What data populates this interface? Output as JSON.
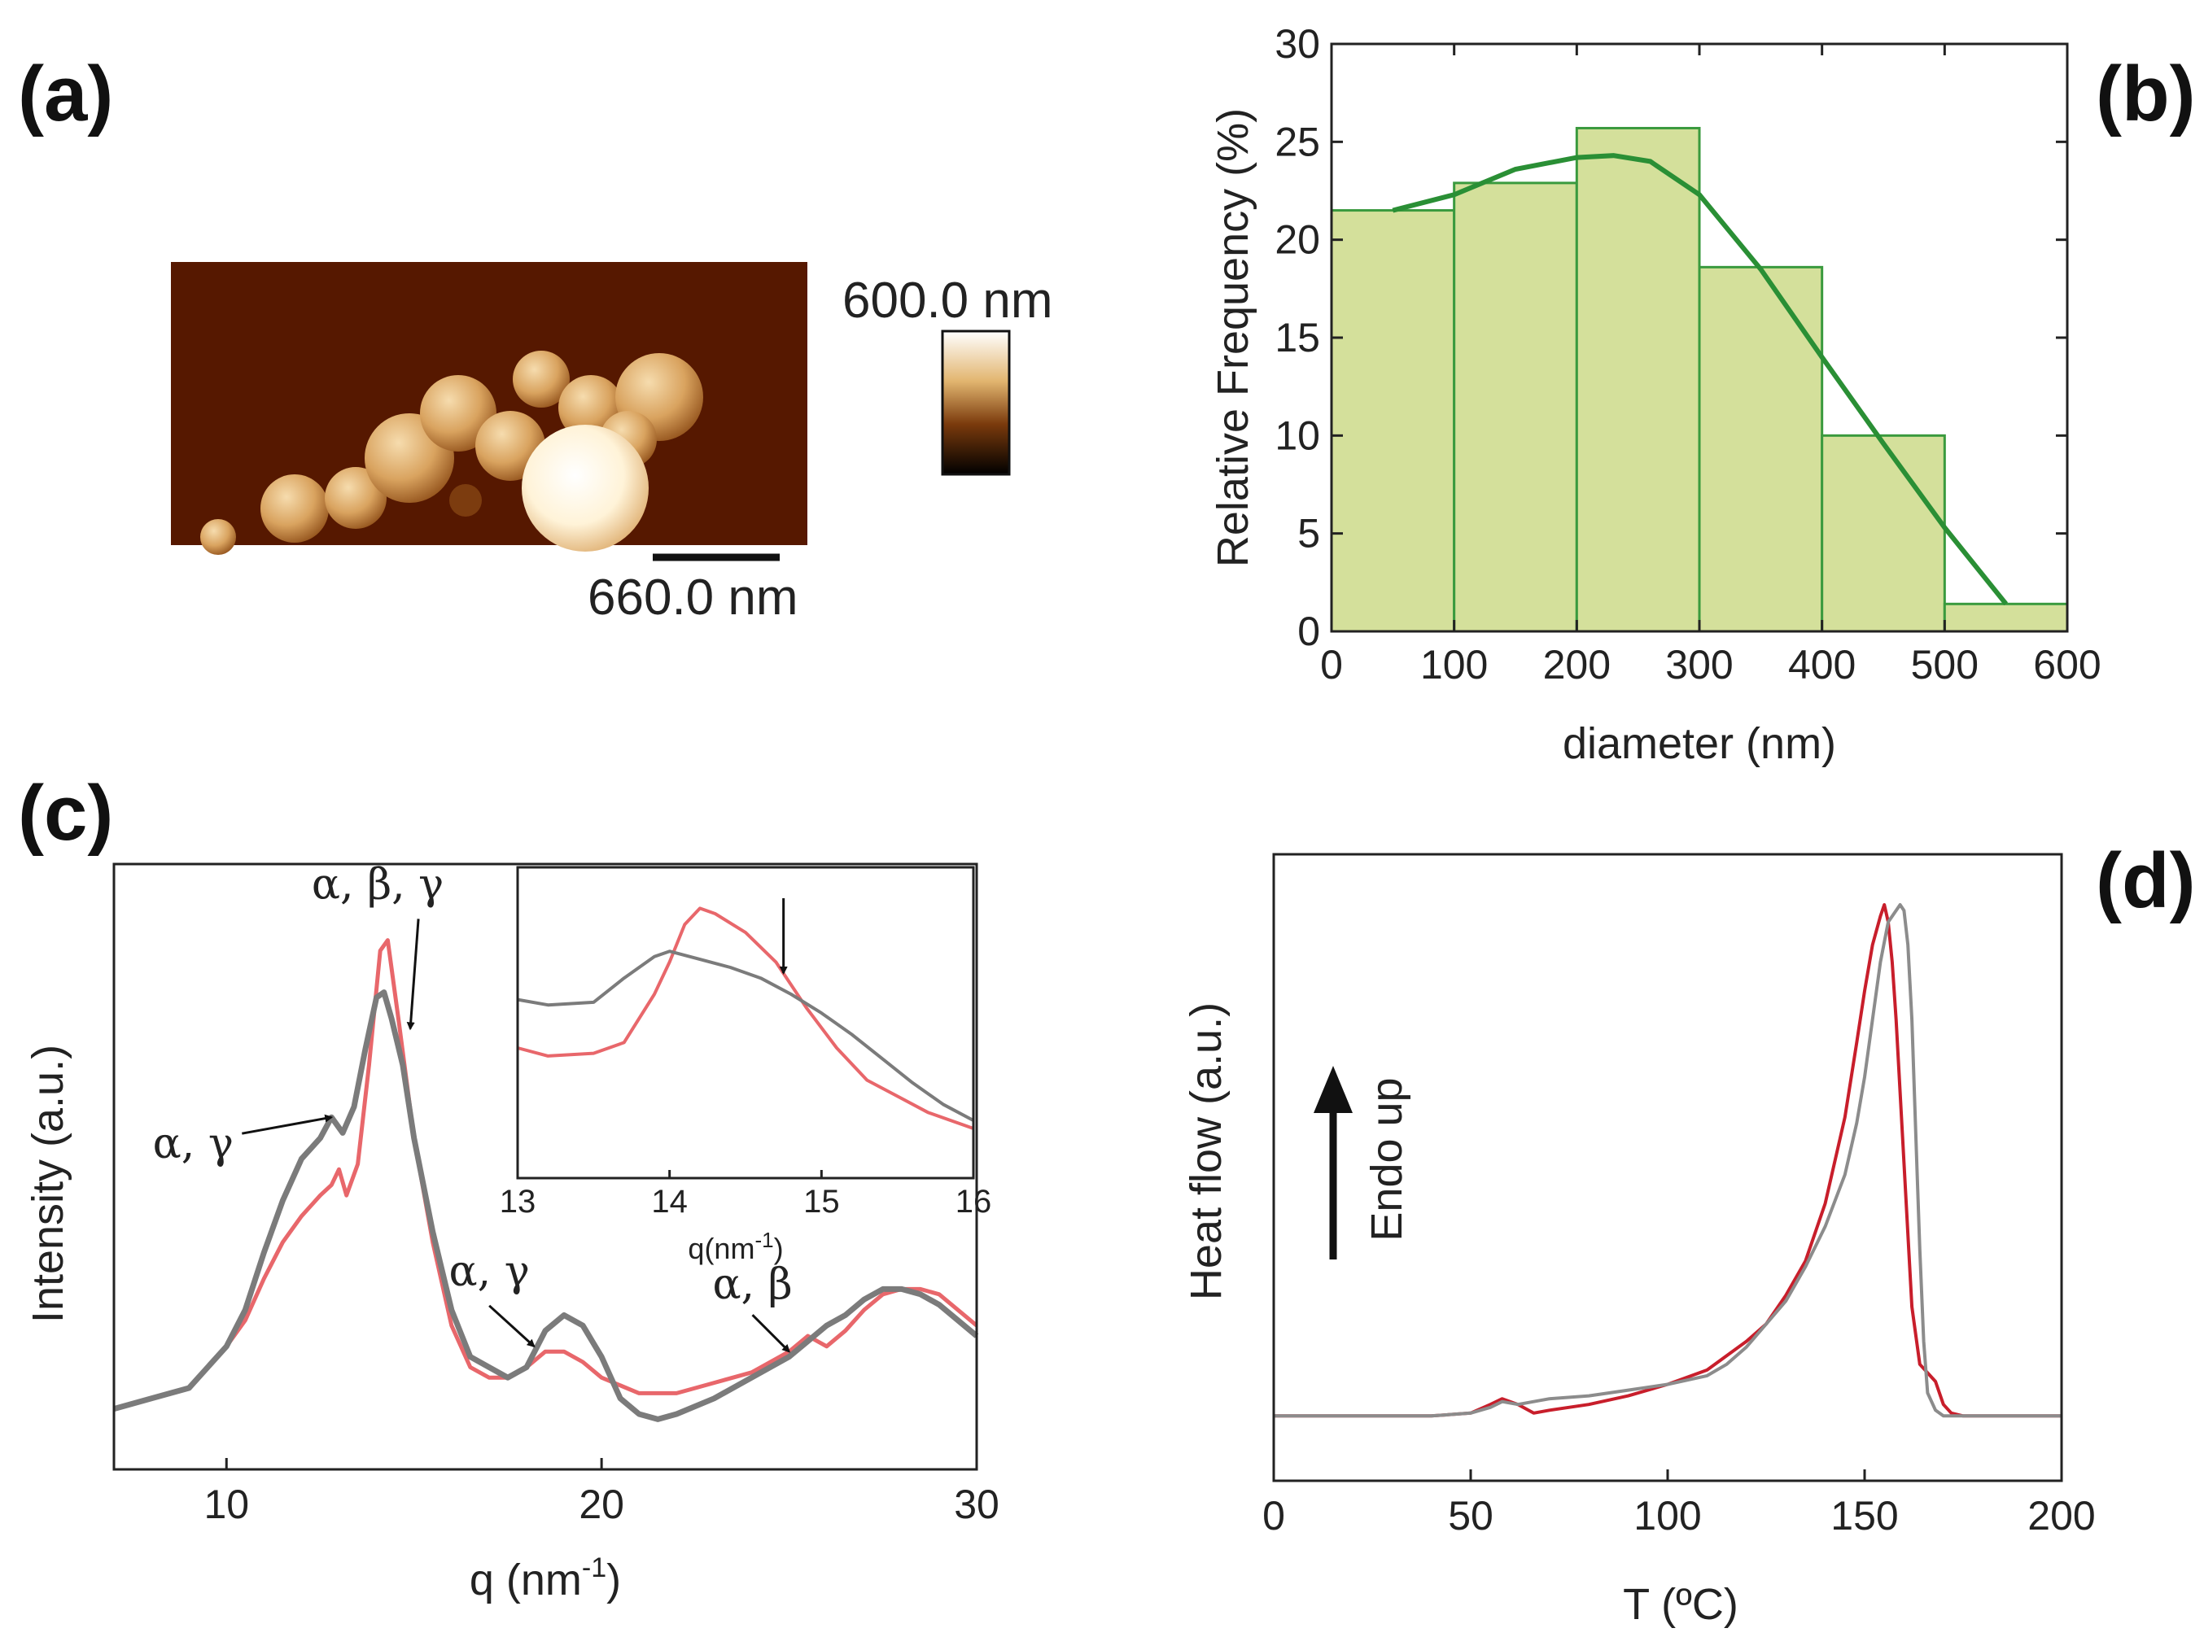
{
  "figure": {
    "panel_labels": {
      "a": "(a)",
      "b": "(b)",
      "c": "(c)",
      "d": "(d)"
    }
  },
  "panel_a": {
    "colorbar_max_label": "600.0 nm",
    "scalebar_label": "660.0 nm",
    "colors": {
      "background": "#561800",
      "particle_light": "#f3d9a6",
      "particle_dark": "#9c5a1c"
    }
  },
  "chart_data": [
    {
      "id": "b",
      "type": "bar",
      "title": "",
      "xlabel": "diameter (nm)",
      "ylabel": "Relative Frequency (%)",
      "xlim": [
        0,
        600
      ],
      "ylim": [
        0,
        30
      ],
      "xticks": [
        0,
        100,
        200,
        300,
        400,
        500,
        600
      ],
      "yticks": [
        0,
        5,
        10,
        15,
        20,
        25,
        30
      ],
      "bins": [
        {
          "from": 0,
          "to": 100,
          "value": 21.5
        },
        {
          "from": 100,
          "to": 200,
          "value": 22.9
        },
        {
          "from": 200,
          "to": 300,
          "value": 25.7
        },
        {
          "from": 300,
          "to": 400,
          "value": 18.6
        },
        {
          "from": 400,
          "to": 500,
          "value": 10.0
        },
        {
          "from": 500,
          "to": 600,
          "value": 1.4
        }
      ],
      "fit_curve": {
        "x": [
          50,
          100,
          150,
          200,
          230,
          260,
          300,
          350,
          400,
          450,
          500,
          550
        ],
        "y": [
          21.5,
          22.3,
          23.6,
          24.2,
          24.3,
          24.0,
          22.3,
          18.5,
          14.0,
          9.6,
          5.3,
          1.4
        ]
      },
      "colors": {
        "bar_fill": "#d4e09b",
        "bar_edge": "#3a9a3e",
        "fit": "#2a8f35"
      }
    },
    {
      "id": "c",
      "type": "line",
      "title": "",
      "xlabel": "q (nm",
      "xlabel_sup": "-1",
      "xlabel_close": ")",
      "ylabel": "Intensity (a.u.)",
      "xlim": [
        7,
        30
      ],
      "ylim": [
        0,
        1
      ],
      "xticks": [
        10,
        20,
        30
      ],
      "series": [
        {
          "name": "red",
          "color": "#e8676b",
          "x": [
            7.0,
            8.0,
            9.0,
            10.0,
            10.5,
            11.0,
            11.5,
            12.0,
            12.5,
            12.8,
            13.0,
            13.2,
            13.5,
            13.8,
            14.1,
            14.3,
            14.6,
            15.0,
            15.5,
            16.0,
            16.5,
            17.0,
            17.5,
            18.0,
            18.5,
            19.0,
            19.5,
            20.0,
            21.0,
            22.0,
            23.0,
            24.0,
            24.5,
            25.0,
            25.5,
            26.0,
            26.5,
            27.0,
            27.5,
            28.0,
            28.5,
            29.0,
            30.0
          ],
          "y": [
            0.06,
            0.08,
            0.1,
            0.18,
            0.23,
            0.31,
            0.38,
            0.43,
            0.47,
            0.49,
            0.52,
            0.47,
            0.53,
            0.72,
            0.94,
            0.96,
            0.8,
            0.58,
            0.38,
            0.22,
            0.14,
            0.12,
            0.12,
            0.14,
            0.17,
            0.17,
            0.15,
            0.12,
            0.09,
            0.09,
            0.11,
            0.13,
            0.15,
            0.17,
            0.2,
            0.18,
            0.21,
            0.25,
            0.28,
            0.29,
            0.29,
            0.28,
            0.22
          ]
        },
        {
          "name": "gray",
          "color": "#7b7b7b",
          "x": [
            7.0,
            8.0,
            9.0,
            10.0,
            10.5,
            11.0,
            11.5,
            12.0,
            12.5,
            12.8,
            13.1,
            13.4,
            13.7,
            14.0,
            14.2,
            14.4,
            14.7,
            15.0,
            15.5,
            16.0,
            16.5,
            17.0,
            17.5,
            18.0,
            18.5,
            19.0,
            19.5,
            20.0,
            20.5,
            21.0,
            21.5,
            22.0,
            23.0,
            24.0,
            25.0,
            26.0,
            26.5,
            27.0,
            27.5,
            28.0,
            28.5,
            29.0,
            30.0
          ],
          "y": [
            0.06,
            0.08,
            0.1,
            0.18,
            0.25,
            0.36,
            0.46,
            0.54,
            0.58,
            0.62,
            0.59,
            0.64,
            0.75,
            0.85,
            0.86,
            0.81,
            0.72,
            0.58,
            0.4,
            0.25,
            0.16,
            0.14,
            0.12,
            0.14,
            0.21,
            0.24,
            0.22,
            0.16,
            0.08,
            0.05,
            0.04,
            0.05,
            0.08,
            0.12,
            0.16,
            0.22,
            0.24,
            0.27,
            0.29,
            0.29,
            0.28,
            0.26,
            0.2
          ]
        }
      ],
      "annotations": [
        {
          "text": "α, β, γ",
          "x": 14.9,
          "y": 0.79
        },
        {
          "text": "α, γ",
          "x": 12.8,
          "y": 0.62
        },
        {
          "text": "α, γ",
          "x": 18.2,
          "y": 0.18
        },
        {
          "text": "α, β",
          "x": 25.0,
          "y": 0.17
        }
      ],
      "inset": {
        "type": "line",
        "xlabel": "q(nm",
        "xlabel_sup": "-1",
        "xlabel_close": ")",
        "xlim": [
          13,
          16
        ],
        "ylim": [
          0,
          1
        ],
        "xticks": [
          13,
          14,
          15,
          16
        ],
        "arrow_x": 14.75,
        "series": [
          {
            "name": "red",
            "color": "#e8676b",
            "x": [
              13.0,
              13.2,
              13.5,
              13.7,
              13.9,
              14.0,
              14.1,
              14.2,
              14.3,
              14.5,
              14.7,
              14.9,
              15.1,
              15.3,
              15.5,
              15.7,
              16.0
            ],
            "y": [
              0.4,
              0.37,
              0.38,
              0.42,
              0.6,
              0.72,
              0.86,
              0.92,
              0.9,
              0.83,
              0.72,
              0.55,
              0.4,
              0.28,
              0.22,
              0.16,
              0.1
            ]
          },
          {
            "name": "gray",
            "color": "#7b7b7b",
            "x": [
              13.0,
              13.2,
              13.5,
              13.7,
              13.9,
              14.0,
              14.2,
              14.4,
              14.6,
              14.8,
              15.0,
              15.2,
              15.4,
              15.6,
              15.8,
              16.0
            ],
            "y": [
              0.58,
              0.56,
              0.57,
              0.66,
              0.74,
              0.76,
              0.73,
              0.7,
              0.66,
              0.6,
              0.53,
              0.45,
              0.36,
              0.27,
              0.19,
              0.13
            ]
          }
        ]
      }
    },
    {
      "id": "d",
      "type": "line",
      "title": "",
      "xlabel": "T  (ºC)",
      "ylabel": "Heat flow (a.u.)",
      "xlim": [
        0,
        200
      ],
      "ylim": [
        0,
        1
      ],
      "xticks": [
        0,
        50,
        100,
        150,
        200
      ],
      "endo_label": "Endo up",
      "series": [
        {
          "name": "red",
          "color": "#c81e2b",
          "x": [
            0,
            20,
            40,
            50,
            55,
            58,
            62,
            66,
            70,
            80,
            90,
            100,
            110,
            120,
            125,
            130,
            135,
            140,
            145,
            148,
            150,
            152,
            154,
            155,
            156,
            157,
            158,
            160,
            162,
            164,
            166,
            168,
            170,
            172,
            175,
            180,
            190,
            200
          ],
          "y": [
            0.11,
            0.11,
            0.11,
            0.115,
            0.13,
            0.14,
            0.13,
            0.115,
            0.12,
            0.13,
            0.145,
            0.165,
            0.19,
            0.24,
            0.27,
            0.32,
            0.38,
            0.48,
            0.63,
            0.76,
            0.85,
            0.93,
            0.98,
            1.0,
            0.97,
            0.9,
            0.8,
            0.55,
            0.3,
            0.2,
            0.185,
            0.17,
            0.13,
            0.115,
            0.11,
            0.11,
            0.11,
            0.11
          ]
        },
        {
          "name": "gray",
          "color": "#8c8c8c",
          "x": [
            0,
            20,
            40,
            50,
            55,
            58,
            62,
            66,
            70,
            80,
            90,
            100,
            110,
            115,
            120,
            125,
            130,
            135,
            140,
            145,
            148,
            150,
            152,
            154,
            156,
            158,
            159,
            160,
            161,
            162,
            163,
            164,
            165,
            166,
            168,
            170,
            175,
            180,
            190,
            200
          ],
          "y": [
            0.11,
            0.11,
            0.11,
            0.115,
            0.125,
            0.135,
            0.13,
            0.135,
            0.14,
            0.145,
            0.155,
            0.165,
            0.18,
            0.2,
            0.23,
            0.27,
            0.31,
            0.37,
            0.44,
            0.53,
            0.62,
            0.7,
            0.8,
            0.9,
            0.97,
            0.99,
            1.0,
            0.99,
            0.93,
            0.8,
            0.6,
            0.4,
            0.24,
            0.15,
            0.12,
            0.11,
            0.11,
            0.11,
            0.11,
            0.11
          ]
        }
      ]
    }
  ]
}
